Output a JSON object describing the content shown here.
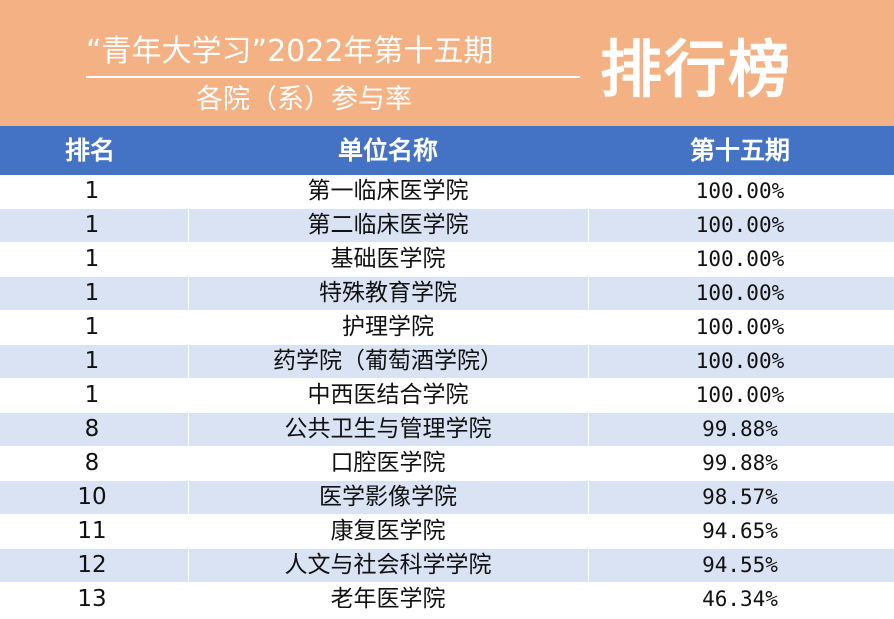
{
  "banner": {
    "title_line1": "“青年大学习”2022年第十五期",
    "title_line2": "各院（系）参与率",
    "title_big": "排行榜",
    "color": "#f4b183"
  },
  "table": {
    "header_color": "#4472c4",
    "stripe_color": "#dae3f3",
    "headers": {
      "rank": "排名",
      "name": "单位名称",
      "rate": "第十五期"
    },
    "rows": [
      {
        "rank": "1",
        "name": "第一临床医学院",
        "rate": "100.00%"
      },
      {
        "rank": "1",
        "name": "第二临床医学院",
        "rate": "100.00%"
      },
      {
        "rank": "1",
        "name": "基础医学院",
        "rate": "100.00%"
      },
      {
        "rank": "1",
        "name": "特殊教育学院",
        "rate": "100.00%"
      },
      {
        "rank": "1",
        "name": "护理学院",
        "rate": "100.00%"
      },
      {
        "rank": "1",
        "name": "药学院（葡萄酒学院）",
        "rate": "100.00%"
      },
      {
        "rank": "1",
        "name": "中西医结合学院",
        "rate": "100.00%"
      },
      {
        "rank": "8",
        "name": "公共卫生与管理学院",
        "rate": "99.88%"
      },
      {
        "rank": "8",
        "name": "口腔医学院",
        "rate": "99.88%"
      },
      {
        "rank": "10",
        "name": "医学影像学院",
        "rate": "98.57%"
      },
      {
        "rank": "11",
        "name": "康复医学院",
        "rate": "94.65%"
      },
      {
        "rank": "12",
        "name": "人文与社会科学学院",
        "rate": "94.55%"
      },
      {
        "rank": "13",
        "name": "老年医学院",
        "rate": "46.34%"
      }
    ]
  }
}
